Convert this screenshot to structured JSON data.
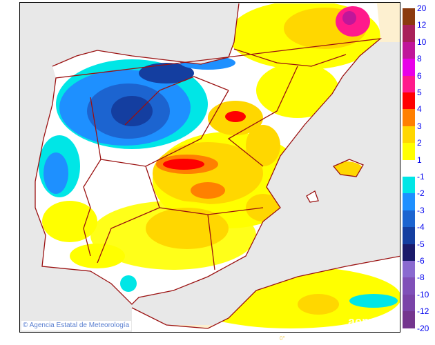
{
  "credit": "Agencia Estatal de Meteorología",
  "credit_symbol": "©",
  "logo": "aemet",
  "lon_label": "0°",
  "legend_positive": {
    "labels": [
      "20",
      "12",
      "10",
      "8",
      "6",
      "5",
      "4",
      "3",
      "2",
      "1"
    ],
    "colors": [
      "#8b3a0f",
      "#a8205a",
      "#c0169a",
      "#e800e8",
      "#ff1a8c",
      "#ff0000",
      "#ff8000",
      "#ffd700",
      "#ffff00"
    ]
  },
  "legend_negative": {
    "labels": [
      "-1",
      "-2",
      "-3",
      "-4",
      "-5",
      "-6",
      "-8",
      "-10",
      "-12",
      "-20"
    ],
    "colors": [
      "#00e6e6",
      "#1e90ff",
      "#1c64d0",
      "#143ea0",
      "#1a1a6a",
      "#8a6ad0",
      "#8050b8",
      "#7a44a8",
      "#74368e"
    ]
  },
  "colors": {
    "sea": "#e8e8e8",
    "border": "#9a1010",
    "outside": "#fdf0d0"
  }
}
